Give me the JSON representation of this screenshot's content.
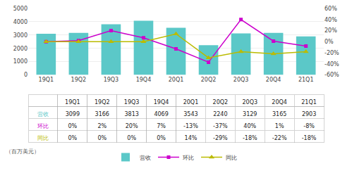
{
  "chart_data": {
    "type": "bar",
    "categories": [
      "19Q1",
      "19Q2",
      "19Q3",
      "19Q4",
      "20Q1",
      "20Q2",
      "20Q3",
      "20Q4",
      "21Q1"
    ],
    "series": [
      {
        "name": "营收",
        "type": "bar",
        "color": "#5bc8c8",
        "values": [
          3099,
          3166,
          3813,
          4069,
          3543,
          2240,
          3129,
          3165,
          2903
        ]
      },
      {
        "name": "环比",
        "type": "line",
        "axis": "y2",
        "color": "#cc00cc",
        "marker": "square",
        "values": [
          0,
          2,
          20,
          7,
          -13,
          -37,
          40,
          1,
          -8
        ],
        "value_labels": [
          "0%",
          "2%",
          "20%",
          "7%",
          "-13%",
          "-37%",
          "40%",
          "1%",
          "-8%"
        ]
      },
      {
        "name": "同比",
        "type": "line",
        "axis": "y2",
        "color": "#bbbb00",
        "marker": "triangle-up",
        "values": [
          0,
          0,
          0,
          0,
          14,
          -29,
          -18,
          -22,
          -18
        ],
        "value_labels": [
          "0%",
          "0%",
          "0%",
          "0%",
          "14%",
          "-29%",
          "-18%",
          "-22%",
          "-18%"
        ]
      }
    ],
    "ylim": [
      0,
      5000
    ],
    "yticks": [
      0,
      1000,
      2000,
      3000,
      4000,
      5000
    ],
    "y2lim": [
      -60,
      60
    ],
    "y2ticks": [
      {
        "value": -60,
        "label": "-60%"
      },
      {
        "value": -40,
        "label": "-40%"
      },
      {
        "value": -20,
        "label": "-20%"
      },
      {
        "value": 0,
        "label": "0%"
      },
      {
        "value": 20,
        "label": "20%"
      },
      {
        "value": 40,
        "label": "40%"
      },
      {
        "value": 60,
        "label": "60%"
      }
    ],
    "grid": true,
    "annotations": [
      "（百万美元）"
    ]
  }
}
